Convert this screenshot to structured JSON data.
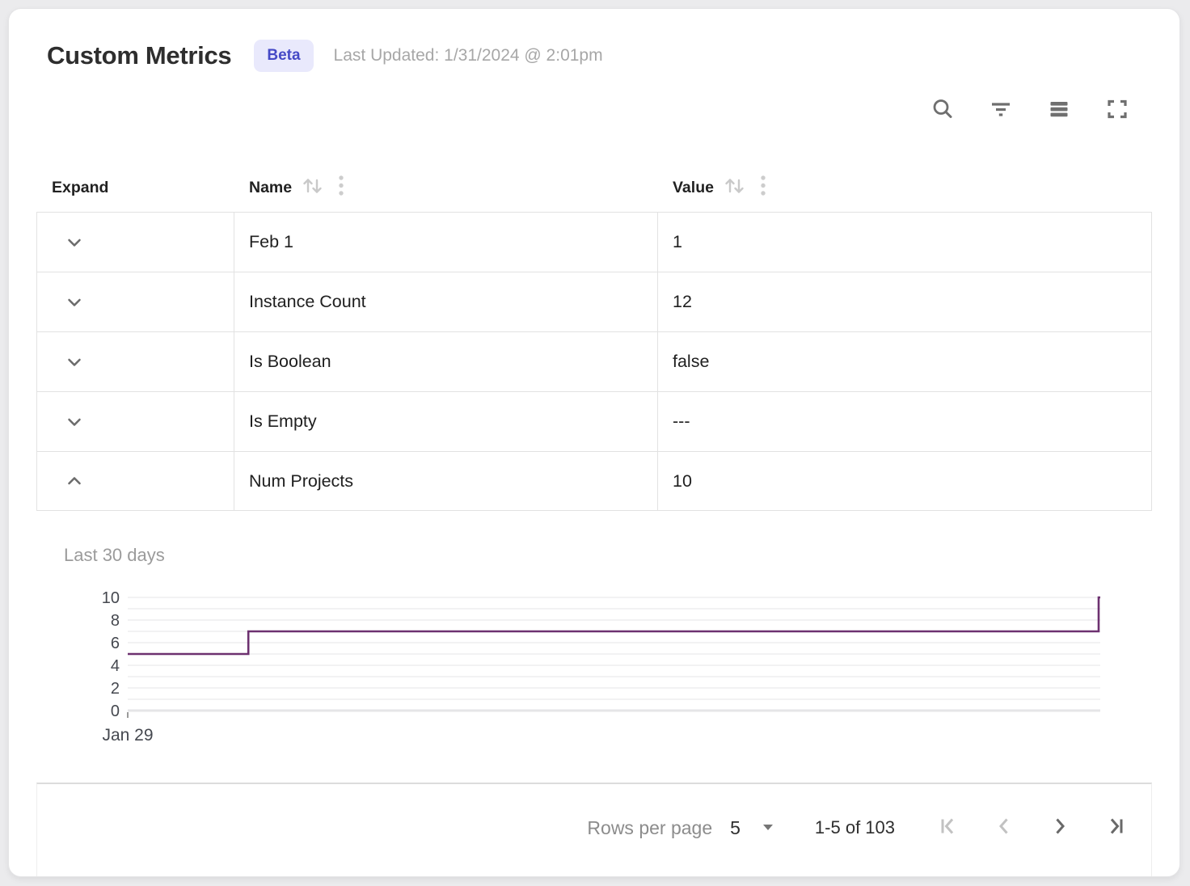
{
  "header": {
    "title": "Custom Metrics",
    "badge": "Beta",
    "last_updated": "Last Updated: 1/31/2024 @ 2:01pm"
  },
  "toolbar": {
    "icons": [
      "search-icon",
      "filter-icon",
      "density-icon",
      "fullscreen-icon"
    ],
    "icon_color": "#6f6f6f"
  },
  "table": {
    "columns": [
      {
        "label": "Expand",
        "sortable": false
      },
      {
        "label": "Name",
        "sortable": true
      },
      {
        "label": "Value",
        "sortable": true
      }
    ],
    "rows": [
      {
        "name": "Feb 1",
        "value": "1",
        "expanded": false
      },
      {
        "name": "Instance Count",
        "value": "12",
        "expanded": false
      },
      {
        "name": "Is Boolean",
        "value": "false",
        "expanded": false
      },
      {
        "name": "Is Empty",
        "value": "---",
        "expanded": false
      },
      {
        "name": "Num Projects",
        "value": "10",
        "expanded": true
      }
    ]
  },
  "detail_panel": {
    "title": "Last 30 days"
  },
  "chart_data": {
    "type": "line",
    "subtype": "step",
    "title": "Last 30 days",
    "xlabel": "",
    "ylabel": "",
    "x_start_label": "Jan 29",
    "ylim": [
      0,
      10
    ],
    "y_ticks": [
      0,
      2,
      4,
      6,
      8,
      10
    ],
    "grid_step": 1,
    "grid_on": true,
    "line_color": "#6d3170",
    "points_frac_value": [
      [
        0,
        5
      ],
      [
        0.124,
        5
      ],
      [
        0.124,
        7
      ],
      [
        0.9983,
        7
      ],
      [
        0.9983,
        10
      ],
      [
        1,
        10
      ]
    ]
  },
  "pagination": {
    "rows_per_page_label": "Rows per page",
    "rows_per_page_value": "5",
    "range_label": "1-5 of 103",
    "first_enabled": false,
    "prev_enabled": false,
    "next_enabled": true,
    "last_enabled": true
  },
  "colors": {
    "badge_bg": "#e9e9fc",
    "badge_text": "#4549c6",
    "line": "#6d3170",
    "border": "#e2e2e2",
    "muted_text": "#9b9b9b",
    "disabled_icon": "#c2c2c2",
    "enabled_icon": "#696969"
  }
}
